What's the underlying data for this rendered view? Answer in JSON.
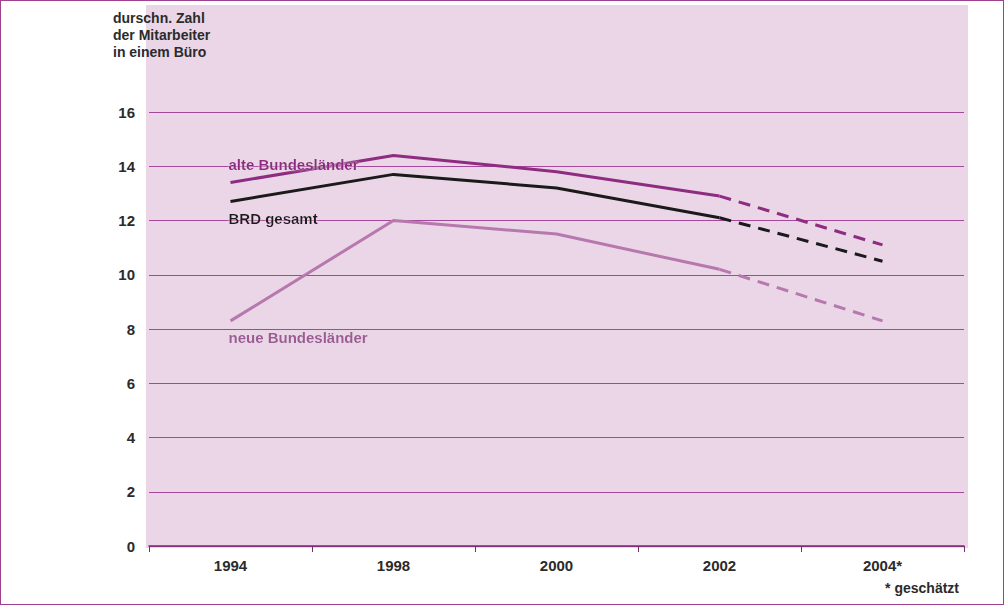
{
  "chart_data": {
    "type": "line",
    "ylabel": "durschn. Zahl der Mitarbeiter in einem Büro",
    "categories": [
      "1994",
      "1998",
      "2000",
      "2002",
      "2004*"
    ],
    "series": [
      {
        "name": "alte Bundesländer",
        "color": "#8e2c82",
        "values": [
          13.4,
          14.4,
          13.8,
          12.9,
          11.1
        ]
      },
      {
        "name": "BRD gesamt",
        "color": "#1a1a1a",
        "values": [
          12.7,
          13.7,
          13.2,
          12.1,
          10.5
        ]
      },
      {
        "name": "neue Bundesländer",
        "color": "#b678ae",
        "values": [
          8.3,
          12.0,
          11.5,
          10.2,
          8.3
        ]
      }
    ],
    "ylim": [
      0,
      16
    ],
    "yticks": [
      0,
      2,
      4,
      6,
      8,
      10,
      12,
      14,
      16
    ],
    "grid": true,
    "annotations": [
      "* geschätzt"
    ]
  }
}
